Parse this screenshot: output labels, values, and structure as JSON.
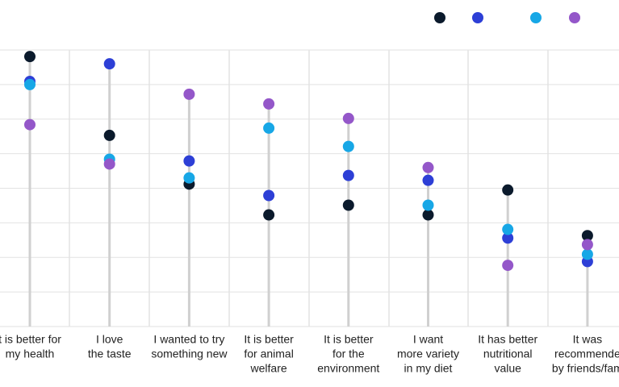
{
  "chart_data": {
    "type": "dot",
    "categories": [
      [
        "t is better for",
        "my health"
      ],
      [
        "I love",
        "the taste"
      ],
      [
        "I wanted to try",
        "something new"
      ],
      [
        "It is better",
        "for animal",
        "welfare"
      ],
      [
        "It is better",
        "for the",
        "environment"
      ],
      [
        "I want",
        "more variety",
        "in my diet"
      ],
      [
        "It has better",
        "nutritional",
        "value"
      ],
      [
        "It was",
        "recommende",
        "by friends/fam"
      ]
    ],
    "series": [
      {
        "color": "#0b1a2c",
        "values": [
          78.1,
          55.3,
          41.2,
          32.3,
          35.1,
          32.3,
          39.5,
          26.3
        ]
      },
      {
        "color": "#2d3fd6",
        "values": [
          70.9,
          76.0,
          47.9,
          37.9,
          43.7,
          42.3,
          25.6,
          18.8
        ]
      },
      {
        "color": "#17a7e6",
        "values": [
          70.0,
          48.4,
          43.0,
          57.4,
          52.1,
          35.1,
          28.1,
          20.9
        ]
      },
      {
        "color": "#9457c9",
        "values": [
          58.4,
          47.0,
          67.2,
          64.4,
          60.2,
          46.0,
          17.7,
          23.7
        ]
      }
    ],
    "ylim": [
      0,
      80
    ],
    "yticks": [
      0,
      10,
      20,
      30,
      40,
      50,
      60,
      70,
      80
    ],
    "grid": true
  }
}
